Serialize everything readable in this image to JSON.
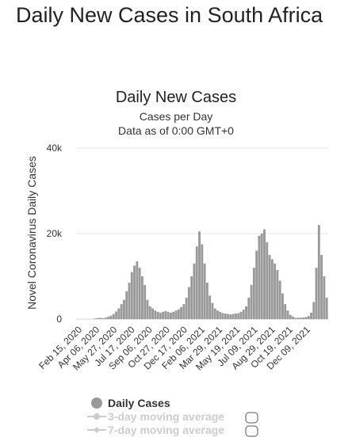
{
  "page": {
    "title": "Daily New Cases in South Africa"
  },
  "chart_data": {
    "type": "bar",
    "title": "Daily New Cases",
    "subtitle_line1": "Cases per Day",
    "subtitle_line2": "Data as of 0:00 GMT+0",
    "ylabel": "Novel Coronavirus Daily Cases",
    "xlabel": "",
    "ylim": [
      0,
      40000
    ],
    "y_ticks": [
      "0",
      "20k",
      "40k"
    ],
    "x_ticks": [
      "Feb 15, 2020",
      "Apr 06, 2020",
      "May 27, 2020",
      "Jul 17, 2020",
      "Sep 06, 2020",
      "Oct 27, 2020",
      "Dec 17, 2020",
      "Feb 06, 2021",
      "Mar 29, 2021",
      "May 19, 2021",
      "Jul 09, 2021",
      "Aug 29, 2021",
      "Oct 19, 2021",
      "Dec 09, 2021"
    ],
    "grid": true,
    "bar_color": "#999999",
    "series": [
      {
        "name": "Daily Cases",
        "values_weekly": [
          0,
          0,
          0,
          0,
          0,
          0,
          30,
          150,
          250,
          300,
          200,
          350,
          600,
          800,
          1200,
          1800,
          2500,
          3500,
          4500,
          6500,
          8500,
          11000,
          12500,
          13500,
          12000,
          10000,
          8000,
          4500,
          3000,
          2500,
          2000,
          1700,
          1500,
          1700,
          1900,
          1700,
          1500,
          1700,
          2000,
          2300,
          2800,
          3500,
          5000,
          7500,
          10000,
          13000,
          17000,
          20500,
          17500,
          13000,
          8500,
          5500,
          3800,
          2500,
          2000,
          1700,
          1400,
          1300,
          1200,
          1100,
          1200,
          1300,
          1400,
          1700,
          2200,
          3000,
          5000,
          8000,
          12000,
          16000,
          19500,
          20000,
          21000,
          18000,
          15000,
          14000,
          13000,
          11500,
          9000,
          6000,
          3500,
          2000,
          1000,
          600,
          300,
          300,
          350,
          400,
          500,
          700,
          1500,
          4000,
          12000,
          22000,
          15000,
          10000,
          5000
        ]
      },
      {
        "name": "3-day moving average",
        "visible": false
      },
      {
        "name": "7-day moving average",
        "visible": false
      }
    ],
    "legend": {
      "position": "bottom-left",
      "items": [
        {
          "label": "Daily Cases",
          "active": true
        },
        {
          "label": "3-day moving average",
          "active": false
        },
        {
          "label": "7-day moving average",
          "active": false
        }
      ]
    }
  }
}
